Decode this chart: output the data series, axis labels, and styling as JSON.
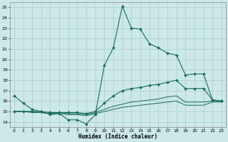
{
  "title": "",
  "xlabel": "Humidex (Indice chaleur)",
  "ylabel": "",
  "bg_color": "#cce8e8",
  "grid_color": "#aacccc",
  "line_color": "#1a6b5a",
  "xlim": [
    -0.5,
    23.5
  ],
  "ylim": [
    13.5,
    25.5
  ],
  "xticks": [
    0,
    1,
    2,
    3,
    4,
    5,
    6,
    7,
    8,
    9,
    10,
    11,
    12,
    13,
    14,
    15,
    16,
    17,
    18,
    19,
    20,
    21,
    22,
    23
  ],
  "yticks": [
    14,
    15,
    16,
    17,
    18,
    19,
    20,
    21,
    22,
    23,
    24,
    25
  ],
  "series": [
    {
      "x": [
        0,
        1,
        2,
        3,
        4,
        5,
        6,
        7,
        8,
        9,
        10,
        11,
        12,
        13,
        14,
        15,
        16,
        17,
        18,
        19,
        20,
        21,
        22,
        23
      ],
      "y": [
        16.5,
        15.8,
        15.2,
        15.0,
        14.7,
        14.8,
        14.2,
        14.2,
        13.8,
        14.7,
        19.4,
        21.1,
        25.1,
        23.0,
        22.9,
        21.5,
        21.1,
        20.6,
        20.4,
        18.5,
        18.6,
        18.6,
        16.1,
        16.0
      ],
      "marker": "D",
      "markersize": 2.0,
      "linewidth": 0.8
    },
    {
      "x": [
        0,
        1,
        2,
        3,
        4,
        5,
        6,
        7,
        8,
        9,
        10,
        11,
        12,
        13,
        14,
        15,
        16,
        17,
        18,
        19,
        20,
        21,
        22,
        23
      ],
      "y": [
        15.0,
        15.0,
        15.0,
        15.0,
        14.9,
        14.9,
        14.9,
        14.9,
        14.8,
        15.0,
        15.8,
        16.5,
        17.0,
        17.2,
        17.3,
        17.5,
        17.6,
        17.8,
        18.0,
        17.2,
        17.2,
        17.2,
        16.1,
        16.0
      ],
      "marker": "D",
      "markersize": 2.0,
      "linewidth": 0.8
    },
    {
      "x": [
        0,
        1,
        2,
        3,
        4,
        5,
        6,
        7,
        8,
        9,
        10,
        11,
        12,
        13,
        14,
        15,
        16,
        17,
        18,
        19,
        20,
        21,
        22,
        23
      ],
      "y": [
        15.0,
        15.0,
        15.0,
        14.9,
        14.8,
        14.9,
        14.8,
        14.8,
        14.7,
        14.9,
        15.2,
        15.5,
        15.7,
        15.9,
        16.0,
        16.1,
        16.2,
        16.4,
        16.5,
        15.9,
        15.9,
        15.9,
        16.0,
        16.0
      ],
      "marker": null,
      "markersize": 0,
      "linewidth": 0.7
    },
    {
      "x": [
        0,
        1,
        2,
        3,
        4,
        5,
        6,
        7,
        8,
        9,
        10,
        11,
        12,
        13,
        14,
        15,
        16,
        17,
        18,
        19,
        20,
        21,
        22,
        23
      ],
      "y": [
        15.0,
        15.0,
        14.9,
        14.9,
        14.8,
        14.8,
        14.7,
        14.7,
        14.6,
        14.8,
        15.0,
        15.2,
        15.4,
        15.5,
        15.6,
        15.7,
        15.8,
        15.9,
        16.0,
        15.6,
        15.6,
        15.6,
        15.9,
        15.9
      ],
      "marker": null,
      "markersize": 0,
      "linewidth": 0.7
    }
  ]
}
